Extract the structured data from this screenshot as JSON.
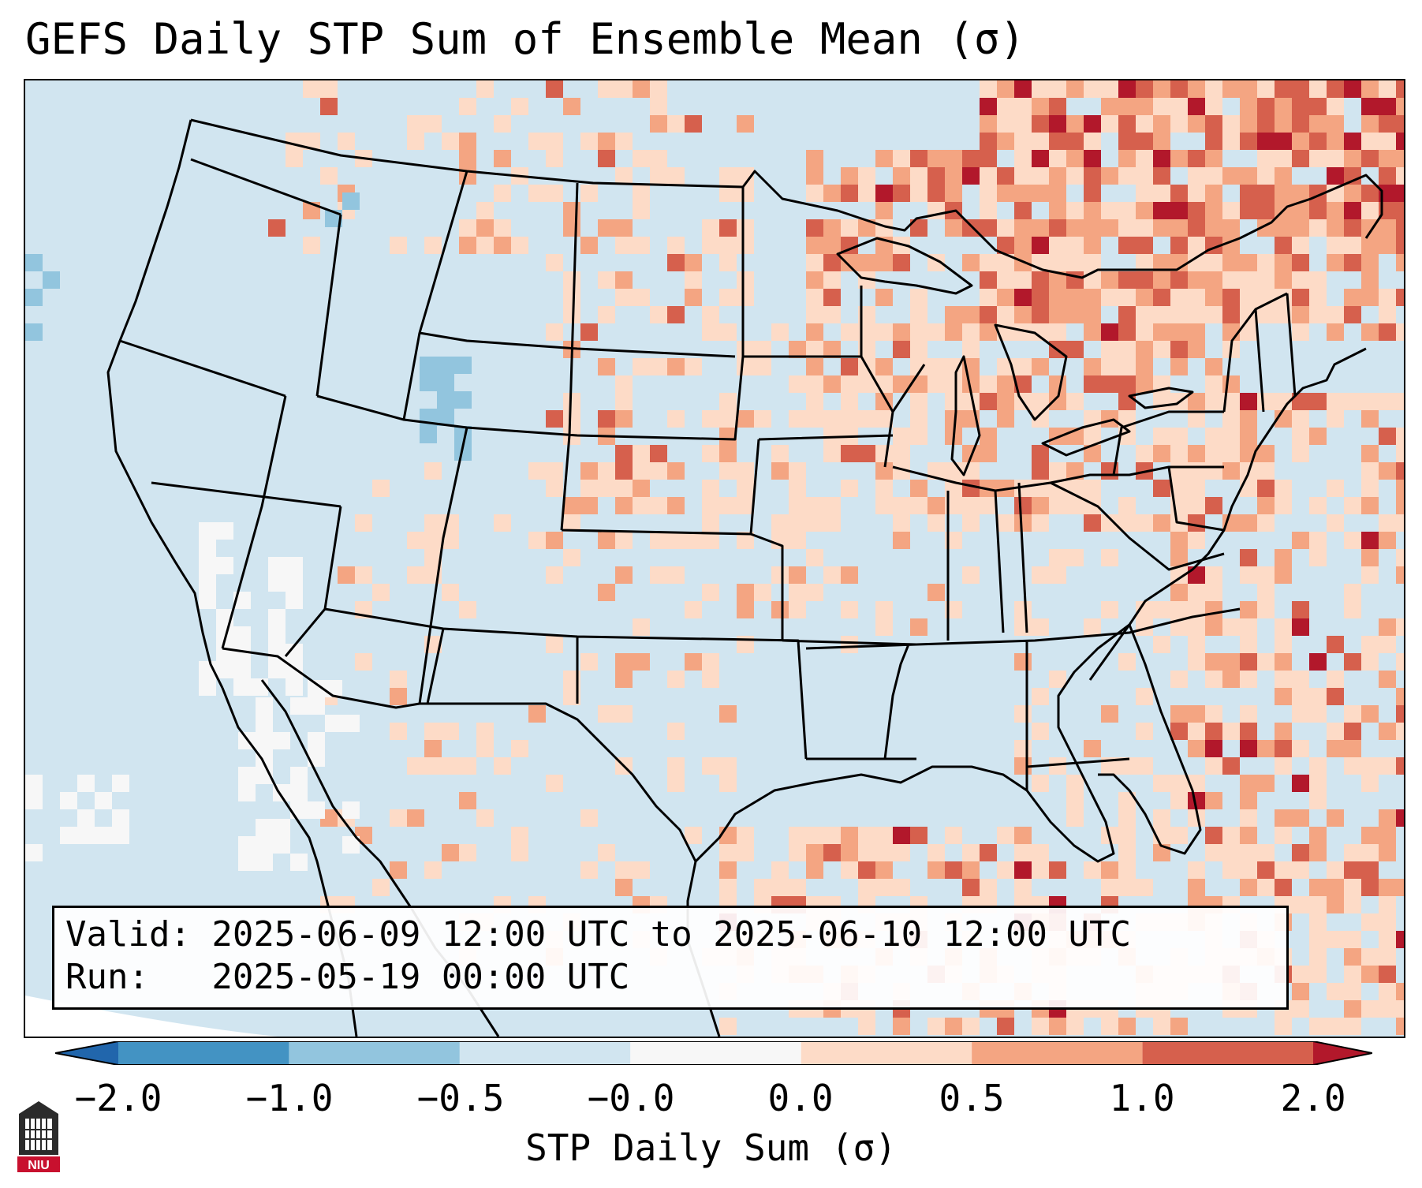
{
  "title": "GEFS Daily STP Sum of Ensemble Mean (σ)",
  "info": {
    "valid_line": "Valid: 2025-06-09 12:00 UTC to 2025-06-10 12:00 UTC",
    "run_line": "Run:   2025-05-19 00:00 UTC"
  },
  "colorbar": {
    "title": "STP Daily Sum (σ)",
    "tick_labels": [
      "−2.0",
      "−1.0",
      "−0.5",
      "−0.0",
      "0.0",
      "0.5",
      "1.0",
      "2.0"
    ],
    "colors": {
      "under": "#2166ac",
      "bin_neg2_neg1": "#4393c3",
      "bin_neg1_neg05": "#92c5de",
      "bin_neg05_neg0": "#d1e5f0",
      "bin_zero": "#f7f7f7",
      "bin_0_05": "#fddbc7",
      "bin_05_1": "#f4a582",
      "bin_1_2": "#d6604d",
      "over": "#b2182b"
    }
  },
  "logo": {
    "text": "NIU",
    "color": "#c8102e"
  }
}
